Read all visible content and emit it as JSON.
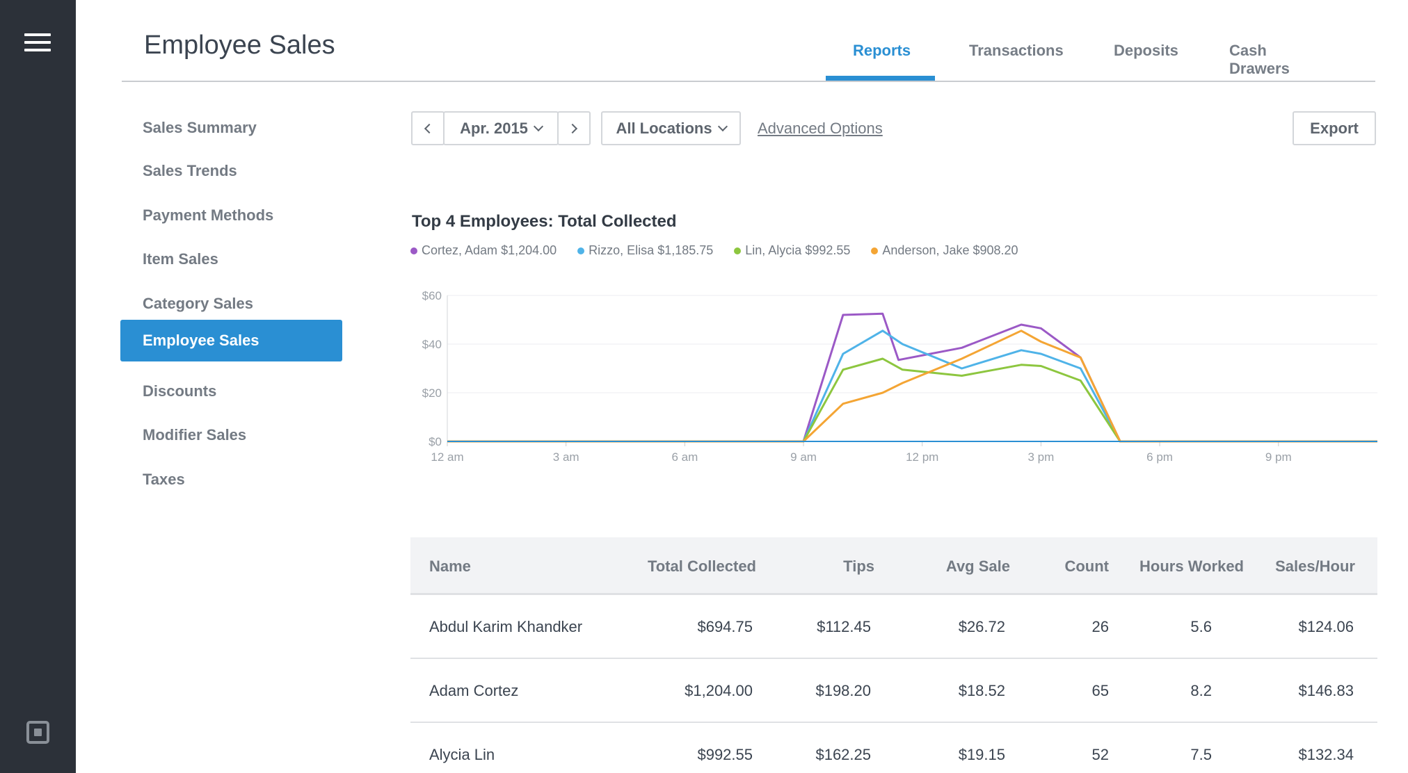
{
  "page": {
    "title": "Employee Sales"
  },
  "tabs": [
    {
      "label": "Reports",
      "active": true
    },
    {
      "label": "Transactions",
      "active": false
    },
    {
      "label": "Deposits",
      "active": false
    },
    {
      "label": "Cash Drawers",
      "active": false
    }
  ],
  "sidebar": {
    "items": [
      {
        "label": "Sales Summary",
        "active": false
      },
      {
        "label": "Sales Trends",
        "active": false
      },
      {
        "label": "Payment Methods",
        "active": false
      },
      {
        "label": "Item Sales",
        "active": false
      },
      {
        "label": "Category Sales",
        "active": false
      },
      {
        "label": "Employee Sales",
        "active": true
      },
      {
        "label": "Discounts",
        "active": false
      },
      {
        "label": "Modifier Sales",
        "active": false
      },
      {
        "label": "Taxes",
        "active": false
      }
    ]
  },
  "toolbar": {
    "month_label": "Apr. 2015",
    "location_label": "All Locations",
    "advanced_label": "Advanced Options",
    "export_label": "Export"
  },
  "colors": {
    "accent": "#2a8fd3",
    "rail": "#2c3139"
  },
  "chart_data": {
    "type": "line",
    "title": "Top 4 Employees: Total Collected",
    "x_ticks": [
      "12 am",
      "3 am",
      "6 am",
      "9 am",
      "12 pm",
      "3 pm",
      "6 pm",
      "9 pm"
    ],
    "y_ticks": [
      "$0",
      "$20",
      "$40",
      "$60"
    ],
    "ylim": [
      0,
      60
    ],
    "xlim": [
      0,
      23.5
    ],
    "grid": true,
    "legend_position": "top-left",
    "series": [
      {
        "name": "Cortez, Adam",
        "total": "$1,204.00",
        "color": "#9b59c6",
        "points": [
          [
            0,
            0
          ],
          [
            9,
            0
          ],
          [
            10,
            52
          ],
          [
            11,
            52.5
          ],
          [
            11.4,
            33.5
          ],
          [
            13,
            38.5
          ],
          [
            14.5,
            48
          ],
          [
            15,
            46.5
          ],
          [
            16,
            34.5
          ],
          [
            17,
            0
          ],
          [
            23.5,
            0
          ]
        ]
      },
      {
        "name": "Rizzo, Elisa",
        "total": "$1,185.75",
        "color": "#4fb3e8",
        "points": [
          [
            0,
            0
          ],
          [
            9,
            0
          ],
          [
            10,
            36
          ],
          [
            11,
            45.5
          ],
          [
            11.5,
            40
          ],
          [
            13,
            30
          ],
          [
            14.5,
            37.5
          ],
          [
            15,
            36
          ],
          [
            16,
            30
          ],
          [
            17,
            0
          ],
          [
            23.5,
            0
          ]
        ]
      },
      {
        "name": "Lin, Alycia",
        "total": "$992.55",
        "color": "#8dc63f",
        "points": [
          [
            0,
            0
          ],
          [
            9,
            0
          ],
          [
            10,
            29.5
          ],
          [
            11,
            34
          ],
          [
            11.5,
            29.5
          ],
          [
            13,
            27
          ],
          [
            14.5,
            31.5
          ],
          [
            15,
            31
          ],
          [
            16,
            25
          ],
          [
            17,
            0
          ],
          [
            23.5,
            0
          ]
        ]
      },
      {
        "name": "Anderson, Jake",
        "total": "$908.20",
        "color": "#f4a534",
        "points": [
          [
            0,
            0
          ],
          [
            9,
            0
          ],
          [
            10,
            15.5
          ],
          [
            11,
            20
          ],
          [
            11.5,
            24
          ],
          [
            13,
            34
          ],
          [
            14.5,
            45.5
          ],
          [
            15,
            41
          ],
          [
            16,
            34.5
          ],
          [
            17,
            0
          ],
          [
            23.5,
            0
          ]
        ]
      }
    ]
  },
  "table": {
    "columns": [
      "Name",
      "Total Collected",
      "Tips",
      "Avg Sale",
      "Count",
      "Hours Worked",
      "Sales/Hour"
    ],
    "rows": [
      [
        "Abdul Karim Khandker",
        "$694.75",
        "$112.45",
        "$26.72",
        "26",
        "5.6",
        "$124.06"
      ],
      [
        "Adam Cortez",
        "$1,204.00",
        "$198.20",
        "$18.52",
        "65",
        "8.2",
        "$146.83"
      ],
      [
        "Alycia Lin",
        "$992.55",
        "$162.25",
        "$19.15",
        "52",
        "7.5",
        "$132.34"
      ]
    ]
  }
}
